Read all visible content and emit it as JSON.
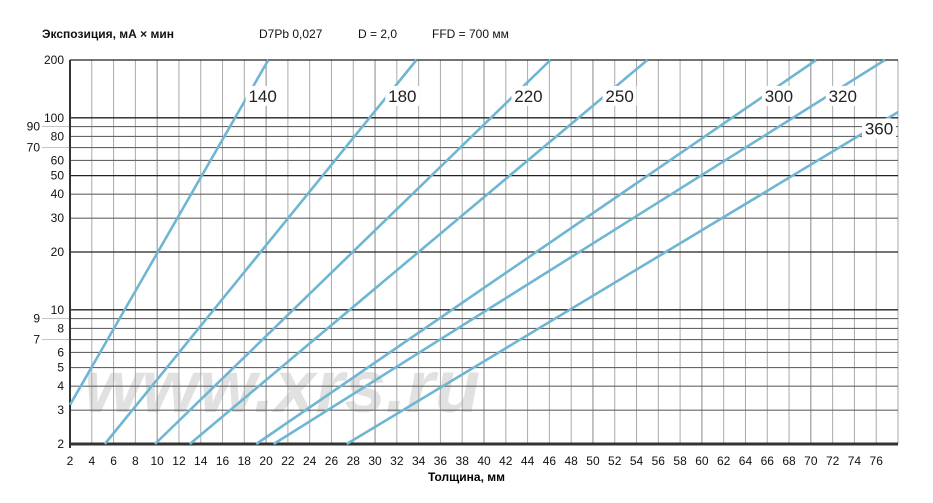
{
  "chart_data": {
    "type": "line",
    "ylabel": "Экспозиция, мА × мин",
    "xlabel": "Толщина, мм",
    "parameters": [
      "D7Pb 0,027",
      "D = 2,0",
      "FFD = 700 мм"
    ],
    "xlim": [
      2,
      78
    ],
    "ylim": [
      2,
      200
    ],
    "yscale": "log",
    "grid": true,
    "x_ticks": [
      2,
      4,
      6,
      8,
      10,
      12,
      14,
      16,
      18,
      20,
      22,
      24,
      26,
      28,
      30,
      32,
      34,
      36,
      38,
      40,
      42,
      44,
      46,
      48,
      50,
      52,
      54,
      56,
      58,
      60,
      62,
      64,
      66,
      68,
      70,
      72,
      74,
      76
    ],
    "y_ticks": [
      2,
      3,
      4,
      5,
      6,
      7,
      8,
      9,
      10,
      20,
      30,
      40,
      50,
      60,
      70,
      80,
      90,
      100,
      200
    ],
    "line_color": "#6fb6d3",
    "series": [
      {
        "name": "140",
        "points": [
          [
            2,
            3.2
          ],
          [
            20.2,
            200
          ]
        ]
      },
      {
        "name": "180",
        "points": [
          [
            5.2,
            2
          ],
          [
            33.8,
            200
          ]
        ]
      },
      {
        "name": "220",
        "points": [
          [
            9.8,
            2
          ],
          [
            46.1,
            200
          ]
        ]
      },
      {
        "name": "250",
        "points": [
          [
            13,
            2
          ],
          [
            55,
            200
          ]
        ]
      },
      {
        "name": "300",
        "points": [
          [
            19.1,
            2
          ],
          [
            70.5,
            200
          ]
        ]
      },
      {
        "name": "320",
        "points": [
          [
            20.7,
            2
          ],
          [
            76.8,
            200
          ]
        ]
      },
      {
        "name": "360",
        "points": [
          [
            27.4,
            2
          ],
          [
            78,
            107
          ]
        ]
      }
    ],
    "watermark": "www.xrs.ru"
  }
}
